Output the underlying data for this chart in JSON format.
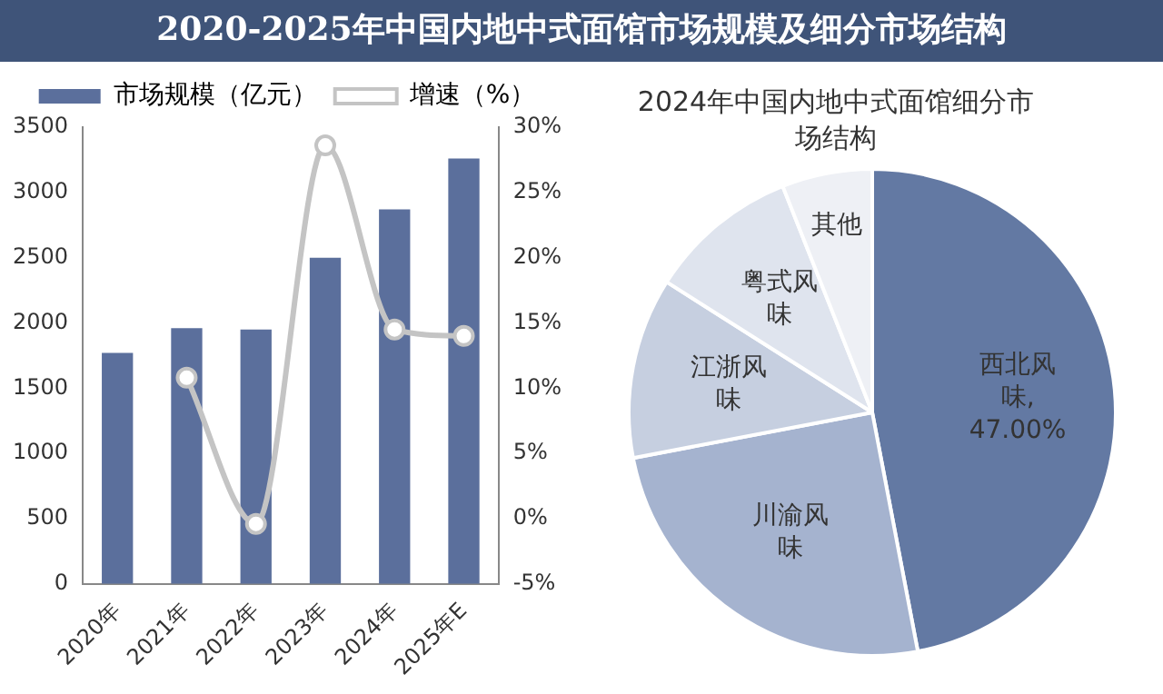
{
  "chart_data": [
    {
      "type": "bar",
      "title": "2020-2025年中国内地中式面馆市场规模及细分市场结构",
      "categories": [
        "2020年",
        "2021年",
        "2022年",
        "2023年",
        "2024年",
        "2025年E"
      ],
      "series": [
        {
          "name": "市场规模（亿元）",
          "type": "bar",
          "color": "#5b6f9c",
          "values": [
            1770,
            1960,
            1950,
            2500,
            2870,
            3260
          ]
        },
        {
          "name": "增速（%）",
          "type": "line",
          "axis": "y2",
          "color": "#c4c4c4",
          "values": [
            null,
            10.8,
            -0.4,
            28.6,
            14.5,
            14.0
          ]
        }
      ],
      "ylim": [
        0,
        3500
      ],
      "yticks": [
        0,
        500,
        1000,
        1500,
        2000,
        2500,
        3000,
        3500
      ],
      "y2lim": [
        -5,
        30
      ],
      "y2ticks": [
        {
          "value": -5,
          "label": "-5%"
        },
        {
          "value": 0,
          "label": "0%"
        },
        {
          "value": 5,
          "label": "5%"
        },
        {
          "value": 10,
          "label": "10%"
        },
        {
          "value": 15,
          "label": "15%"
        },
        {
          "value": 20,
          "label": "20%"
        },
        {
          "value": 25,
          "label": "25%"
        },
        {
          "value": 30,
          "label": "30%"
        }
      ],
      "grid": false,
      "legend": "top",
      "marker": "circle",
      "line_style": "solid"
    },
    {
      "type": "pie",
      "title": "2024年中国内地中式面馆细分市场结构",
      "categories": [
        "西北风味",
        "川渝风味",
        "江浙风味",
        "粤式风味",
        "其他"
      ],
      "values": [
        47,
        25,
        12,
        10,
        6
      ],
      "value_labels": [
        ", 47.00%",
        null,
        null,
        null,
        null
      ],
      "colors": [
        "#6379a3",
        "#a5b3cf",
        "#c6cfe0",
        "#dfe4ee",
        "#eef0f5"
      ]
    }
  ]
}
